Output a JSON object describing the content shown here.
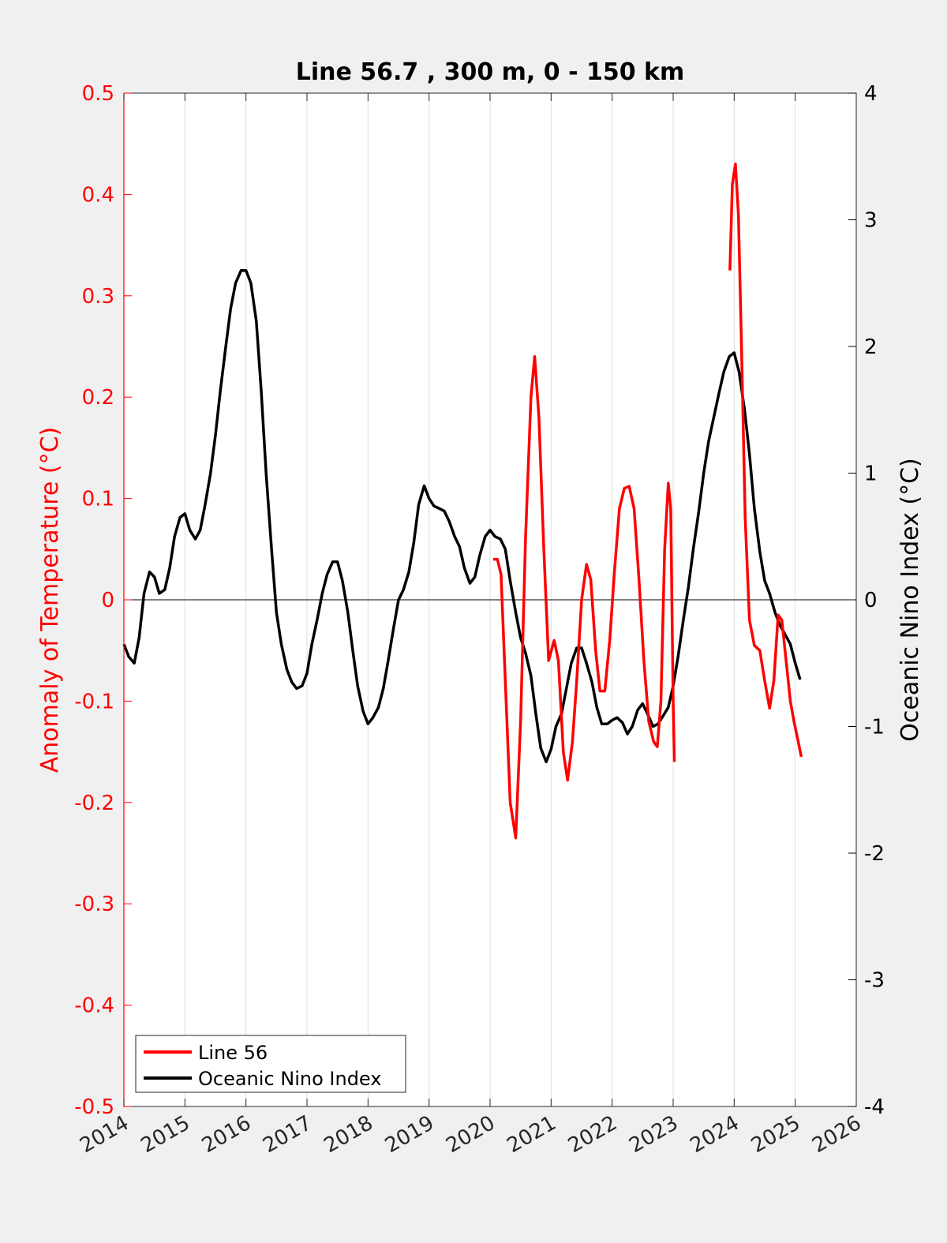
{
  "chart_data": {
    "type": "line",
    "title": "Line 56.7 , 300 m, 0 - 150 km",
    "xlabel": "",
    "ylabel_left": "Anomaly of Temperature (°C)",
    "ylabel_right": "Oceanic Nino Index (°C)",
    "xlim": [
      2014,
      2026
    ],
    "ylim_left": [
      -0.5,
      0.5
    ],
    "ylim_right": [
      -4,
      4
    ],
    "x_ticks": [
      "2014",
      "2015",
      "2016",
      "2017",
      "2018",
      "2019",
      "2020",
      "2021",
      "2022",
      "2023",
      "2024",
      "2025",
      "2026"
    ],
    "y_left_ticks": [
      "0.5",
      "0.4",
      "0.3",
      "0.2",
      "0.1",
      "0",
      "-0.1",
      "-0.2",
      "-0.3",
      "-0.4",
      "-0.5"
    ],
    "y_right_ticks": [
      "4",
      "3",
      "2",
      "1",
      "0",
      "-1",
      "-2",
      "-3",
      "-4"
    ],
    "grid": "vertical",
    "legend_position": "bottom-left",
    "colors": {
      "line56": "#ff0000",
      "oni": "#000000",
      "left_axis": "#ff0000",
      "right_axis": "#000000"
    },
    "series": [
      {
        "name": "Line 56",
        "axis": "left",
        "segments": [
          [
            [
              2020.05,
              0.04
            ],
            [
              2020.12,
              0.04
            ],
            [
              2020.18,
              0.025
            ],
            [
              2020.25,
              -0.08
            ],
            [
              2020.33,
              -0.2
            ],
            [
              2020.42,
              -0.235
            ],
            [
              2020.5,
              -0.12
            ],
            [
              2020.58,
              0.06
            ],
            [
              2020.67,
              0.2
            ],
            [
              2020.73,
              0.24
            ],
            [
              2020.8,
              0.18
            ],
            [
              2020.88,
              0.05
            ],
            [
              2020.96,
              -0.06
            ],
            [
              2021.05,
              -0.04
            ],
            [
              2021.12,
              -0.06
            ],
            [
              2021.2,
              -0.15
            ],
            [
              2021.27,
              -0.178
            ],
            [
              2021.35,
              -0.14
            ],
            [
              2021.42,
              -0.08
            ],
            [
              2021.5,
              0.0
            ],
            [
              2021.58,
              0.035
            ],
            [
              2021.65,
              0.02
            ],
            [
              2021.73,
              -0.05
            ],
            [
              2021.8,
              -0.09
            ],
            [
              2021.88,
              -0.09
            ],
            [
              2021.96,
              -0.04
            ],
            [
              2022.04,
              0.03
            ],
            [
              2022.12,
              0.09
            ],
            [
              2022.2,
              0.11
            ],
            [
              2022.28,
              0.112
            ],
            [
              2022.36,
              0.09
            ],
            [
              2022.44,
              0.02
            ],
            [
              2022.52,
              -0.06
            ],
            [
              2022.6,
              -0.12
            ],
            [
              2022.68,
              -0.14
            ],
            [
              2022.74,
              -0.145
            ],
            [
              2022.8,
              -0.1
            ],
            [
              2022.86,
              0.05
            ],
            [
              2022.92,
              0.115
            ],
            [
              2022.96,
              0.09
            ],
            [
              2023.0,
              -0.1
            ],
            [
              2023.02,
              -0.16
            ]
          ],
          [
            [
              2023.93,
              0.325
            ],
            [
              2023.97,
              0.41
            ],
            [
              2024.02,
              0.43
            ],
            [
              2024.07,
              0.38
            ],
            [
              2024.12,
              0.25
            ],
            [
              2024.18,
              0.08
            ],
            [
              2024.25,
              -0.02
            ],
            [
              2024.33,
              -0.045
            ],
            [
              2024.42,
              -0.05
            ],
            [
              2024.5,
              -0.08
            ],
            [
              2024.58,
              -0.107
            ],
            [
              2024.65,
              -0.08
            ],
            [
              2024.72,
              -0.015
            ],
            [
              2024.78,
              -0.02
            ],
            [
              2024.85,
              -0.06
            ],
            [
              2024.92,
              -0.1
            ],
            [
              2024.98,
              -0.12
            ],
            [
              2025.05,
              -0.14
            ],
            [
              2025.1,
              -0.155
            ]
          ]
        ]
      },
      {
        "name": "Oceanic Nino Index",
        "axis": "right",
        "points": [
          [
            2014.0,
            -0.35
          ],
          [
            2014.08,
            -0.45
          ],
          [
            2014.17,
            -0.5
          ],
          [
            2014.25,
            -0.3
          ],
          [
            2014.33,
            0.05
          ],
          [
            2014.42,
            0.22
          ],
          [
            2014.5,
            0.18
          ],
          [
            2014.58,
            0.05
          ],
          [
            2014.67,
            0.08
          ],
          [
            2014.75,
            0.25
          ],
          [
            2014.83,
            0.5
          ],
          [
            2014.92,
            0.65
          ],
          [
            2015.0,
            0.68
          ],
          [
            2015.08,
            0.55
          ],
          [
            2015.17,
            0.48
          ],
          [
            2015.25,
            0.55
          ],
          [
            2015.33,
            0.75
          ],
          [
            2015.42,
            1.0
          ],
          [
            2015.5,
            1.3
          ],
          [
            2015.58,
            1.65
          ],
          [
            2015.67,
            2.0
          ],
          [
            2015.75,
            2.3
          ],
          [
            2015.83,
            2.5
          ],
          [
            2015.92,
            2.6
          ],
          [
            2016.0,
            2.6
          ],
          [
            2016.08,
            2.5
          ],
          [
            2016.17,
            2.2
          ],
          [
            2016.25,
            1.65
          ],
          [
            2016.33,
            1.0
          ],
          [
            2016.42,
            0.4
          ],
          [
            2016.5,
            -0.1
          ],
          [
            2016.58,
            -0.35
          ],
          [
            2016.67,
            -0.55
          ],
          [
            2016.75,
            -0.65
          ],
          [
            2016.83,
            -0.7
          ],
          [
            2016.92,
            -0.68
          ],
          [
            2017.0,
            -0.58
          ],
          [
            2017.08,
            -0.35
          ],
          [
            2017.17,
            -0.15
          ],
          [
            2017.25,
            0.05
          ],
          [
            2017.33,
            0.2
          ],
          [
            2017.42,
            0.3
          ],
          [
            2017.5,
            0.3
          ],
          [
            2017.58,
            0.15
          ],
          [
            2017.67,
            -0.1
          ],
          [
            2017.75,
            -0.4
          ],
          [
            2017.83,
            -0.68
          ],
          [
            2017.92,
            -0.88
          ],
          [
            2018.0,
            -0.98
          ],
          [
            2018.08,
            -0.93
          ],
          [
            2018.17,
            -0.85
          ],
          [
            2018.25,
            -0.7
          ],
          [
            2018.33,
            -0.48
          ],
          [
            2018.42,
            -0.22
          ],
          [
            2018.5,
            0.0
          ],
          [
            2018.58,
            0.08
          ],
          [
            2018.67,
            0.22
          ],
          [
            2018.75,
            0.45
          ],
          [
            2018.83,
            0.75
          ],
          [
            2018.92,
            0.9
          ],
          [
            2019.0,
            0.8
          ],
          [
            2019.08,
            0.74
          ],
          [
            2019.17,
            0.72
          ],
          [
            2019.25,
            0.7
          ],
          [
            2019.33,
            0.62
          ],
          [
            2019.42,
            0.5
          ],
          [
            2019.5,
            0.42
          ],
          [
            2019.58,
            0.25
          ],
          [
            2019.67,
            0.13
          ],
          [
            2019.75,
            0.18
          ],
          [
            2019.83,
            0.35
          ],
          [
            2019.92,
            0.5
          ],
          [
            2020.0,
            0.55
          ],
          [
            2020.08,
            0.5
          ],
          [
            2020.17,
            0.48
          ],
          [
            2020.25,
            0.4
          ],
          [
            2020.33,
            0.15
          ],
          [
            2020.42,
            -0.1
          ],
          [
            2020.5,
            -0.3
          ],
          [
            2020.58,
            -0.42
          ],
          [
            2020.67,
            -0.6
          ],
          [
            2020.75,
            -0.9
          ],
          [
            2020.83,
            -1.17
          ],
          [
            2020.92,
            -1.28
          ],
          [
            2021.0,
            -1.18
          ],
          [
            2021.08,
            -1.0
          ],
          [
            2021.17,
            -0.9
          ],
          [
            2021.25,
            -0.7
          ],
          [
            2021.33,
            -0.5
          ],
          [
            2021.42,
            -0.38
          ],
          [
            2021.5,
            -0.38
          ],
          [
            2021.58,
            -0.5
          ],
          [
            2021.67,
            -0.65
          ],
          [
            2021.75,
            -0.85
          ],
          [
            2021.83,
            -0.98
          ],
          [
            2021.92,
            -0.98
          ],
          [
            2022.0,
            -0.95
          ],
          [
            2022.08,
            -0.93
          ],
          [
            2022.17,
            -0.97
          ],
          [
            2022.25,
            -1.06
          ],
          [
            2022.33,
            -1.0
          ],
          [
            2022.42,
            -0.87
          ],
          [
            2022.5,
            -0.82
          ],
          [
            2022.58,
            -0.9
          ],
          [
            2022.67,
            -1.0
          ],
          [
            2022.75,
            -0.98
          ],
          [
            2022.83,
            -0.92
          ],
          [
            2022.92,
            -0.85
          ],
          [
            2023.0,
            -0.68
          ],
          [
            2023.08,
            -0.45
          ],
          [
            2023.17,
            -0.15
          ],
          [
            2023.25,
            0.1
          ],
          [
            2023.33,
            0.4
          ],
          [
            2023.42,
            0.7
          ],
          [
            2023.5,
            1.0
          ],
          [
            2023.58,
            1.25
          ],
          [
            2023.67,
            1.45
          ],
          [
            2023.75,
            1.63
          ],
          [
            2023.83,
            1.8
          ],
          [
            2023.92,
            1.92
          ],
          [
            2024.0,
            1.95
          ],
          [
            2024.08,
            1.8
          ],
          [
            2024.17,
            1.5
          ],
          [
            2024.25,
            1.15
          ],
          [
            2024.33,
            0.72
          ],
          [
            2024.42,
            0.38
          ],
          [
            2024.5,
            0.15
          ],
          [
            2024.58,
            0.05
          ],
          [
            2024.67,
            -0.1
          ],
          [
            2024.75,
            -0.2
          ],
          [
            2024.83,
            -0.27
          ],
          [
            2024.92,
            -0.35
          ],
          [
            2025.0,
            -0.5
          ],
          [
            2025.08,
            -0.63
          ]
        ]
      }
    ]
  }
}
